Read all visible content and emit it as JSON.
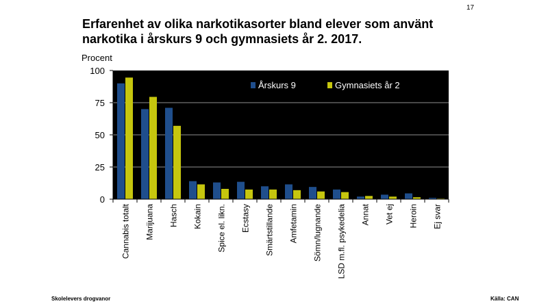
{
  "page_number": "17",
  "title_line1": "Erfarenhet av olika narkotikasorter bland elever som använt",
  "title_line2": "narkotika i årskurs 9 och gymnasiets år 2. 2017.",
  "footer": {
    "left": "Skolelevers drogvanor",
    "right": "Källa: CAN"
  },
  "colors": {
    "plot_bg": "#000000",
    "grid": "#bfbfbf",
    "series1": "#1f4e8c",
    "series2": "#c6c60e"
  },
  "chart_data": {
    "type": "bar",
    "title": "Erfarenhet av olika narkotikasorter bland elever som använt narkotika i årskurs 9 och gymnasiets år 2. 2017.",
    "ylabel": "Procent",
    "xlabel": "",
    "ylim": [
      0,
      100
    ],
    "yticks": [
      0,
      25,
      50,
      75,
      100
    ],
    "legend_position": "top-right",
    "grid": true,
    "categories": [
      "Cannabis totalt",
      "Marijuana",
      "Hasch",
      "Kokain",
      "Spice el. likn.",
      "Ecstasy",
      "Smärtstillande",
      "Amfetamin",
      "Sömn/lugnande",
      "LSD m.fl. psykedelia",
      "Annat",
      "Vet ej",
      "Heroin",
      "Ej svar"
    ],
    "series": [
      {
        "name": "Årskurs 9",
        "values": [
          90,
          70,
          71,
          14,
          13,
          13.5,
          10,
          11.5,
          9.5,
          7.5,
          2,
          3.5,
          4.5,
          1
        ]
      },
      {
        "name": "Gymnasiets år 2",
        "values": [
          94.5,
          79.5,
          57,
          11.5,
          8,
          7.5,
          7.5,
          7,
          6,
          5.5,
          2.5,
          2,
          1.5,
          0.5
        ]
      }
    ]
  }
}
